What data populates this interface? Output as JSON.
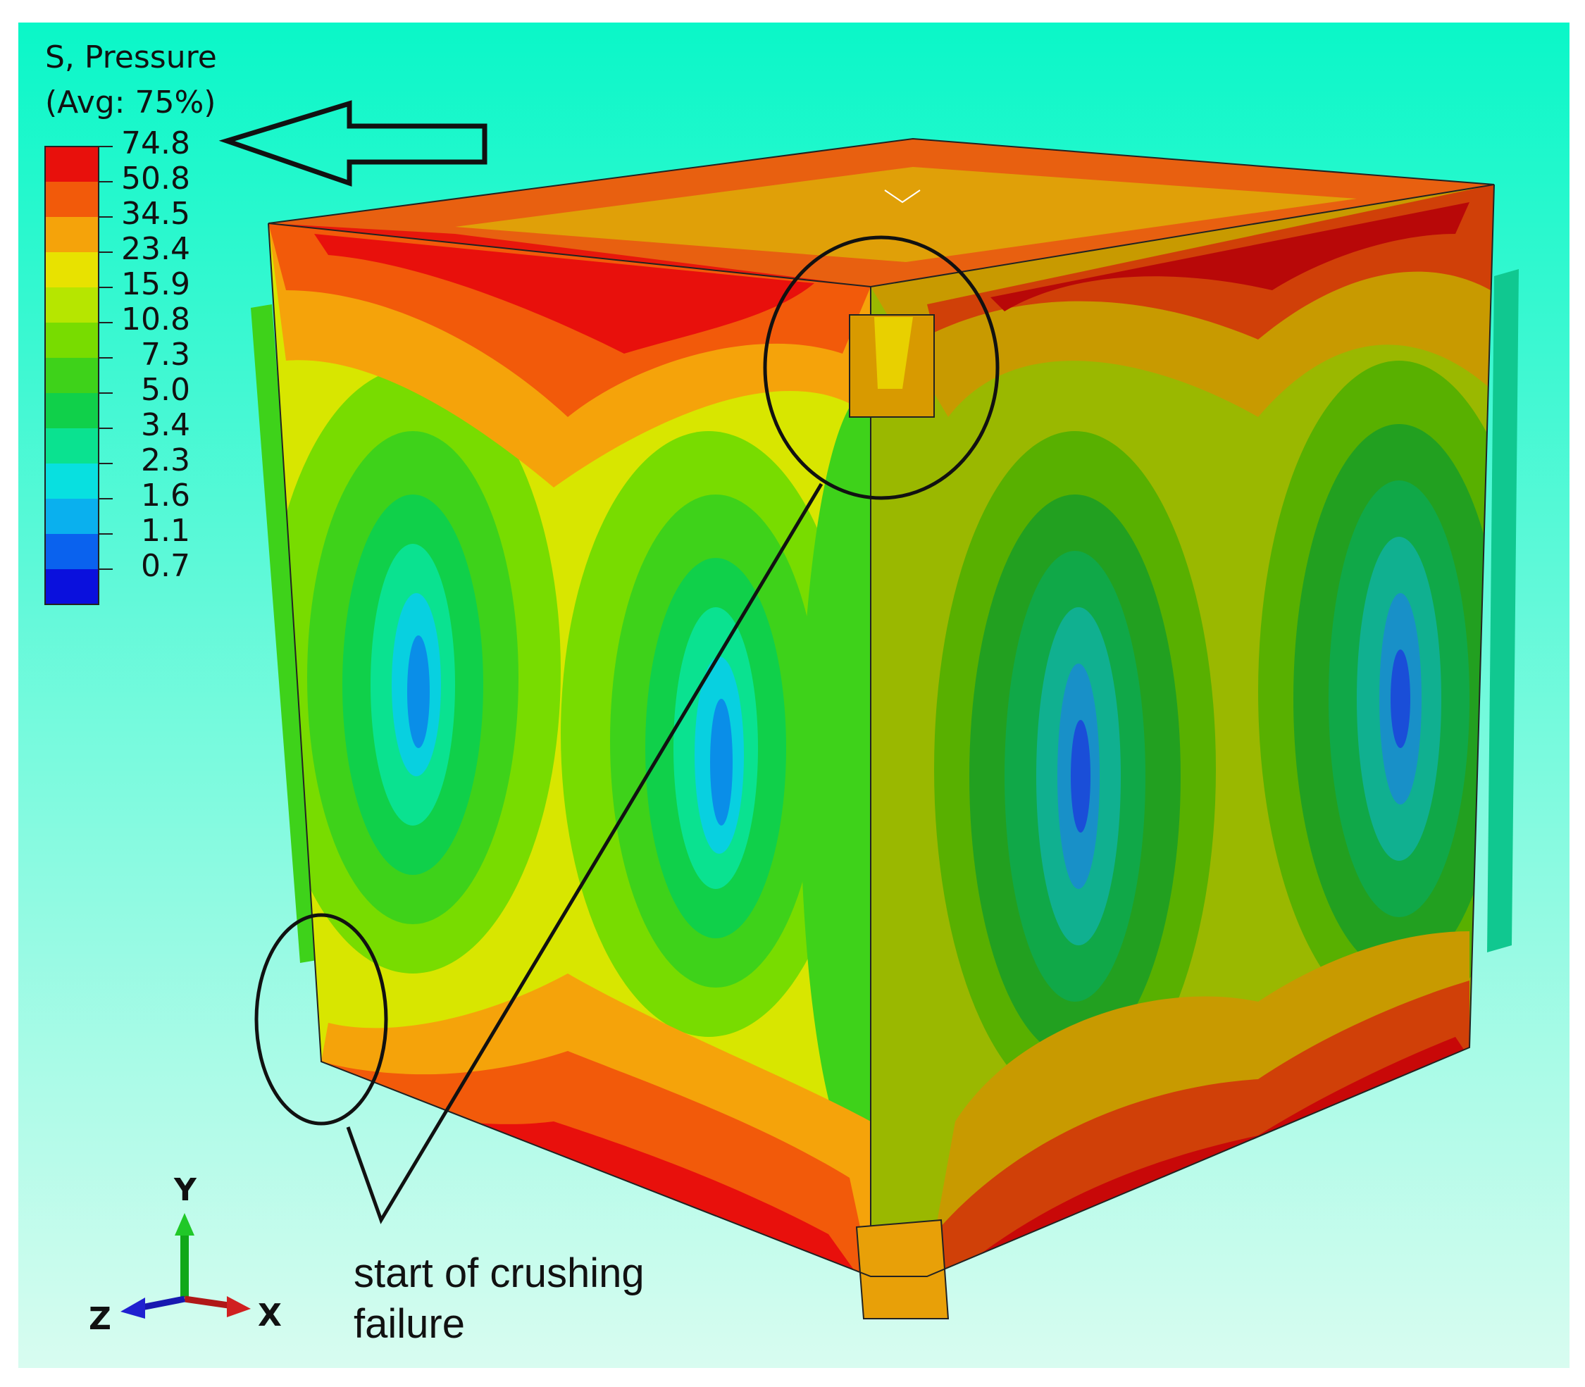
{
  "legend": {
    "title": "S, Pressure",
    "subtitle": "(Avg: 75%)",
    "ticks": [
      "74.8",
      "50.8",
      "34.5",
      "23.4",
      "15.9",
      "10.8",
      "7.3",
      "5.0",
      "3.4",
      "2.3",
      "1.6",
      "1.1",
      "0.7"
    ],
    "band_colors": [
      "#e8100c",
      "#f25a0a",
      "#f5a30a",
      "#e8e200",
      "#b6e600",
      "#78dc00",
      "#3ed21a",
      "#10d04a",
      "#0ae290",
      "#08e0e0",
      "#0ab0ee",
      "#0a62ee",
      "#0a10dd"
    ]
  },
  "annotation": {
    "line1": "start of crushing",
    "line2": "failure"
  },
  "triad": {
    "y_label": "Y",
    "x_label": "X",
    "z_label": "Z"
  },
  "colors": {
    "bg_top": "#0af7c8",
    "bg_bottom": "#d8fcf0"
  }
}
